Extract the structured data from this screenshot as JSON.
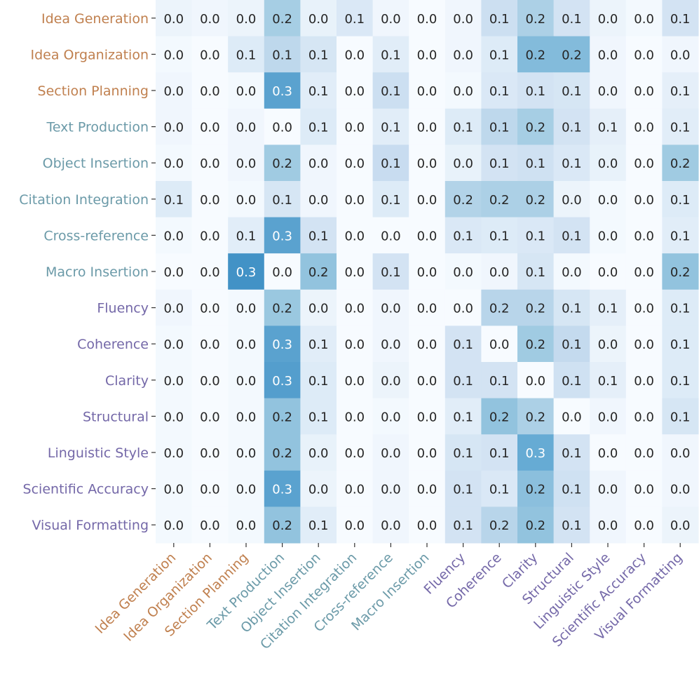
{
  "chart_data": {
    "type": "heatmap",
    "title": "",
    "xlabel": "",
    "ylabel": "",
    "labels": [
      "Idea Generation",
      "Idea Organization",
      "Section Planning",
      "Text Production",
      "Object Insertion",
      "Citation Integration",
      "Cross-reference",
      "Macro Insertion",
      "Fluency",
      "Coherence",
      "Clarity",
      "Structural",
      "Linguistic Style",
      "Scientific Accuracy",
      "Visual Formatting"
    ],
    "label_groups": [
      "planning",
      "planning",
      "planning",
      "implementation",
      "implementation",
      "implementation",
      "implementation",
      "implementation",
      "revision",
      "revision",
      "revision",
      "revision",
      "revision",
      "revision",
      "revision"
    ],
    "group_colors": {
      "planning": "#c0804f",
      "implementation": "#6b9aa8",
      "revision": "#7468a8"
    },
    "values": [
      [
        0.03,
        0.02,
        0.03,
        0.19,
        0.04,
        0.08,
        0.02,
        0.0,
        0.02,
        0.12,
        0.18,
        0.1,
        0.03,
        0.01,
        0.1
      ],
      [
        0.01,
        0.0,
        0.07,
        0.15,
        0.09,
        0.0,
        0.06,
        0.0,
        0.02,
        0.07,
        0.24,
        0.24,
        0.02,
        0.0,
        0.02
      ],
      [
        0.02,
        0.0,
        0.01,
        0.3,
        0.06,
        0.0,
        0.12,
        0.0,
        0.01,
        0.08,
        0.1,
        0.09,
        0.02,
        0.0,
        0.05
      ],
      [
        0.02,
        0.0,
        0.02,
        0.0,
        0.07,
        0.0,
        0.06,
        0.0,
        0.07,
        0.15,
        0.19,
        0.1,
        0.05,
        0.0,
        0.06
      ],
      [
        0.01,
        0.0,
        0.02,
        0.2,
        0.02,
        0.0,
        0.13,
        0.0,
        0.04,
        0.1,
        0.11,
        0.08,
        0.04,
        0.0,
        0.2
      ],
      [
        0.07,
        0.0,
        0.01,
        0.09,
        0.02,
        0.0,
        0.07,
        0.0,
        0.17,
        0.18,
        0.18,
        0.03,
        0.01,
        0.0,
        0.07
      ],
      [
        0.01,
        0.0,
        0.06,
        0.3,
        0.1,
        0.0,
        0.0,
        0.0,
        0.08,
        0.07,
        0.08,
        0.1,
        0.01,
        0.0,
        0.06
      ],
      [
        0.0,
        0.0,
        0.34,
        0.0,
        0.22,
        0.0,
        0.1,
        0.0,
        0.01,
        0.02,
        0.09,
        0.01,
        0.0,
        0.0,
        0.22
      ],
      [
        0.02,
        0.0,
        0.01,
        0.21,
        0.03,
        0.0,
        0.02,
        0.0,
        0.0,
        0.16,
        0.16,
        0.09,
        0.05,
        0.0,
        0.07
      ],
      [
        0.01,
        0.0,
        0.01,
        0.3,
        0.06,
        0.0,
        0.02,
        0.0,
        0.1,
        0.0,
        0.2,
        0.14,
        0.03,
        0.0,
        0.07
      ],
      [
        0.01,
        0.0,
        0.01,
        0.31,
        0.07,
        0.0,
        0.03,
        0.0,
        0.1,
        0.1,
        0.0,
        0.11,
        0.05,
        0.0,
        0.07
      ],
      [
        0.01,
        0.0,
        0.01,
        0.22,
        0.07,
        0.0,
        0.01,
        0.0,
        0.06,
        0.22,
        0.18,
        0.0,
        0.02,
        0.0,
        0.09
      ],
      [
        0.01,
        0.0,
        0.01,
        0.22,
        0.04,
        0.0,
        0.02,
        0.0,
        0.09,
        0.1,
        0.28,
        0.1,
        0.0,
        0.0,
        0.02
      ],
      [
        0.01,
        0.0,
        0.01,
        0.3,
        0.03,
        0.0,
        0.02,
        0.0,
        0.1,
        0.08,
        0.23,
        0.11,
        0.02,
        0.0,
        0.02
      ],
      [
        0.01,
        0.0,
        0.01,
        0.22,
        0.06,
        0.0,
        0.02,
        0.0,
        0.1,
        0.16,
        0.22,
        0.1,
        0.02,
        0.0,
        0.03
      ]
    ],
    "value_format_decimals": 1,
    "colormap": [
      "#f7fbff",
      "#deebf7",
      "#c6dbef",
      "#9ecae1",
      "#6baed6",
      "#4292c6"
    ],
    "grid": false,
    "legend": "none"
  }
}
